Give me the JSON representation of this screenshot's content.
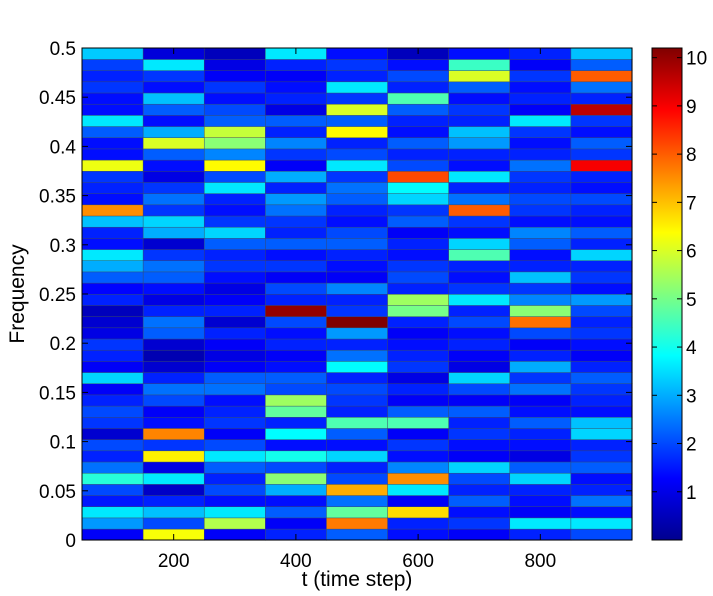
{
  "chart_data": {
    "type": "heatmap",
    "title": "",
    "xlabel": "t (time step)",
    "ylabel": "Frequency",
    "x_centers": [
      100,
      200,
      300,
      400,
      500,
      600,
      700,
      800,
      900
    ],
    "x_range": [
      50,
      950
    ],
    "x_ticks": [
      200,
      400,
      600,
      800
    ],
    "y_range": [
      0,
      0.5
    ],
    "y_ticks": [
      0,
      0.05,
      0.1,
      0.15,
      0.2,
      0.25,
      0.3,
      0.35,
      0.4,
      0.45,
      0.5
    ],
    "y_tick_labels": [
      "0",
      "0.05",
      "0.1",
      "0.15",
      "0.2",
      "0.25",
      "0.3",
      "0.35",
      "0.4",
      "0.45",
      "0.5"
    ],
    "n_frequency_bins": 44,
    "colormap": "jet",
    "color_range": [
      0,
      10.2
    ],
    "colorbar_ticks": [
      1,
      2,
      3,
      4,
      5,
      6,
      7,
      8,
      9,
      10
    ],
    "columns": [
      [
        1.2,
        2.8,
        3.6,
        1.5,
        2.0,
        4.2,
        2.4,
        1.6,
        2.0,
        0.8,
        1.8,
        2.0,
        1.6,
        1.2,
        3.4,
        1.2,
        1.6,
        1.8,
        1.0,
        0.8,
        0.6,
        1.6,
        1.3,
        2.2,
        3.0,
        3.6,
        1.4,
        1.6,
        3.2,
        7.5,
        1.4,
        1.6,
        1.8,
        6.2,
        1.4,
        1.4,
        2.2,
        3.6,
        1.4,
        1.4,
        1.8,
        1.6,
        1.9,
        3.3
      ],
      [
        6.3,
        2.0,
        3.2,
        1.6,
        0.7,
        3.6,
        1.0,
        6.5,
        1.8,
        7.6,
        1.4,
        1.2,
        2.0,
        2.4,
        1.6,
        0.8,
        0.5,
        0.8,
        2.2,
        2.4,
        1.6,
        1.0,
        1.4,
        2.2,
        2.4,
        1.8,
        0.8,
        3.0,
        3.4,
        1.8,
        2.4,
        1.8,
        1.0,
        1.4,
        2.2,
        6.0,
        3.0,
        1.4,
        2.2,
        3.2,
        1.4,
        1.8,
        3.6,
        0.9
      ],
      [
        1.2,
        5.6,
        3.6,
        1.4,
        2.0,
        1.6,
        2.2,
        3.6,
        2.0,
        1.2,
        1.8,
        1.6,
        1.4,
        2.4,
        2.2,
        1.2,
        1.0,
        1.2,
        1.6,
        0.8,
        1.6,
        1.2,
        1.0,
        1.4,
        1.8,
        1.6,
        2.2,
        3.4,
        1.8,
        1.4,
        1.6,
        3.6,
        2.0,
        6.4,
        2.6,
        5.2,
        5.8,
        2.2,
        2.0,
        1.4,
        1.8,
        1.2,
        1.0,
        0.6
      ],
      [
        1.6,
        1.2,
        2.2,
        1.4,
        3.0,
        5.2,
        2.0,
        4.0,
        1.4,
        3.8,
        1.6,
        4.8,
        5.4,
        2.0,
        2.2,
        1.4,
        1.2,
        1.6,
        1.4,
        2.0,
        10.0,
        1.6,
        2.0,
        1.2,
        1.8,
        1.4,
        2.2,
        1.6,
        1.8,
        2.4,
        2.8,
        1.6,
        3.0,
        1.2,
        1.8,
        2.6,
        1.6,
        2.2,
        1.0,
        1.6,
        1.4,
        1.2,
        1.6,
        3.6
      ],
      [
        2.2,
        7.7,
        4.8,
        2.4,
        7.2,
        2.0,
        1.6,
        3.4,
        1.4,
        2.2,
        4.6,
        1.6,
        1.8,
        2.0,
        1.6,
        3.8,
        2.4,
        1.6,
        2.8,
        10.2,
        1.8,
        1.6,
        2.6,
        1.2,
        1.4,
        1.6,
        2.2,
        2.0,
        1.4,
        1.6,
        2.2,
        2.4,
        1.8,
        3.6,
        2.0,
        1.6,
        6.4,
        2.2,
        6.0,
        1.8,
        3.6,
        1.6,
        1.8,
        1.4
      ],
      [
        1.4,
        1.6,
        6.7,
        1.2,
        3.6,
        7.5,
        2.6,
        1.4,
        1.8,
        1.2,
        4.6,
        2.2,
        1.2,
        1.6,
        1.0,
        1.8,
        1.6,
        1.4,
        1.2,
        1.6,
        5.0,
        5.4,
        1.6,
        2.0,
        1.8,
        1.4,
        1.6,
        1.2,
        2.2,
        1.8,
        3.4,
        3.8,
        8.2,
        2.0,
        1.6,
        2.2,
        1.4,
        1.6,
        2.2,
        4.6,
        1.6,
        2.0,
        1.4,
        0.6
      ],
      [
        1.2,
        1.8,
        1.4,
        2.2,
        1.6,
        2.0,
        3.4,
        1.2,
        1.4,
        1.8,
        1.6,
        2.2,
        1.2,
        2.0,
        3.4,
        1.0,
        1.2,
        1.6,
        1.4,
        2.0,
        1.6,
        3.6,
        1.8,
        1.4,
        1.6,
        4.6,
        3.4,
        1.4,
        1.8,
        8.0,
        2.4,
        1.6,
        3.6,
        1.4,
        1.6,
        2.8,
        3.2,
        1.6,
        1.8,
        1.4,
        2.2,
        6.0,
        4.4,
        1.4
      ],
      [
        1.6,
        3.6,
        1.2,
        1.4,
        1.6,
        3.4,
        2.2,
        1.0,
        1.4,
        1.6,
        2.2,
        1.4,
        1.2,
        2.4,
        1.8,
        3.0,
        1.6,
        1.2,
        2.0,
        7.8,
        5.2,
        2.6,
        1.8,
        3.2,
        1.6,
        1.4,
        2.2,
        2.6,
        1.4,
        1.8,
        2.0,
        1.6,
        1.8,
        2.4,
        1.6,
        1.4,
        1.8,
        3.6,
        1.2,
        1.6,
        1.4,
        1.8,
        1.2,
        1.6
      ],
      [
        2.0,
        3.6,
        1.4,
        2.4,
        1.6,
        1.4,
        2.2,
        1.8,
        1.6,
        3.4,
        3.2,
        1.4,
        1.6,
        1.8,
        2.2,
        1.6,
        1.2,
        1.4,
        1.8,
        1.6,
        2.0,
        2.8,
        1.4,
        1.8,
        1.6,
        3.4,
        1.6,
        2.2,
        1.4,
        1.6,
        2.0,
        1.4,
        1.6,
        9.0,
        1.8,
        2.2,
        1.4,
        1.8,
        9.6,
        1.6,
        2.4,
        8.0,
        2.2,
        3.2
      ]
    ]
  }
}
